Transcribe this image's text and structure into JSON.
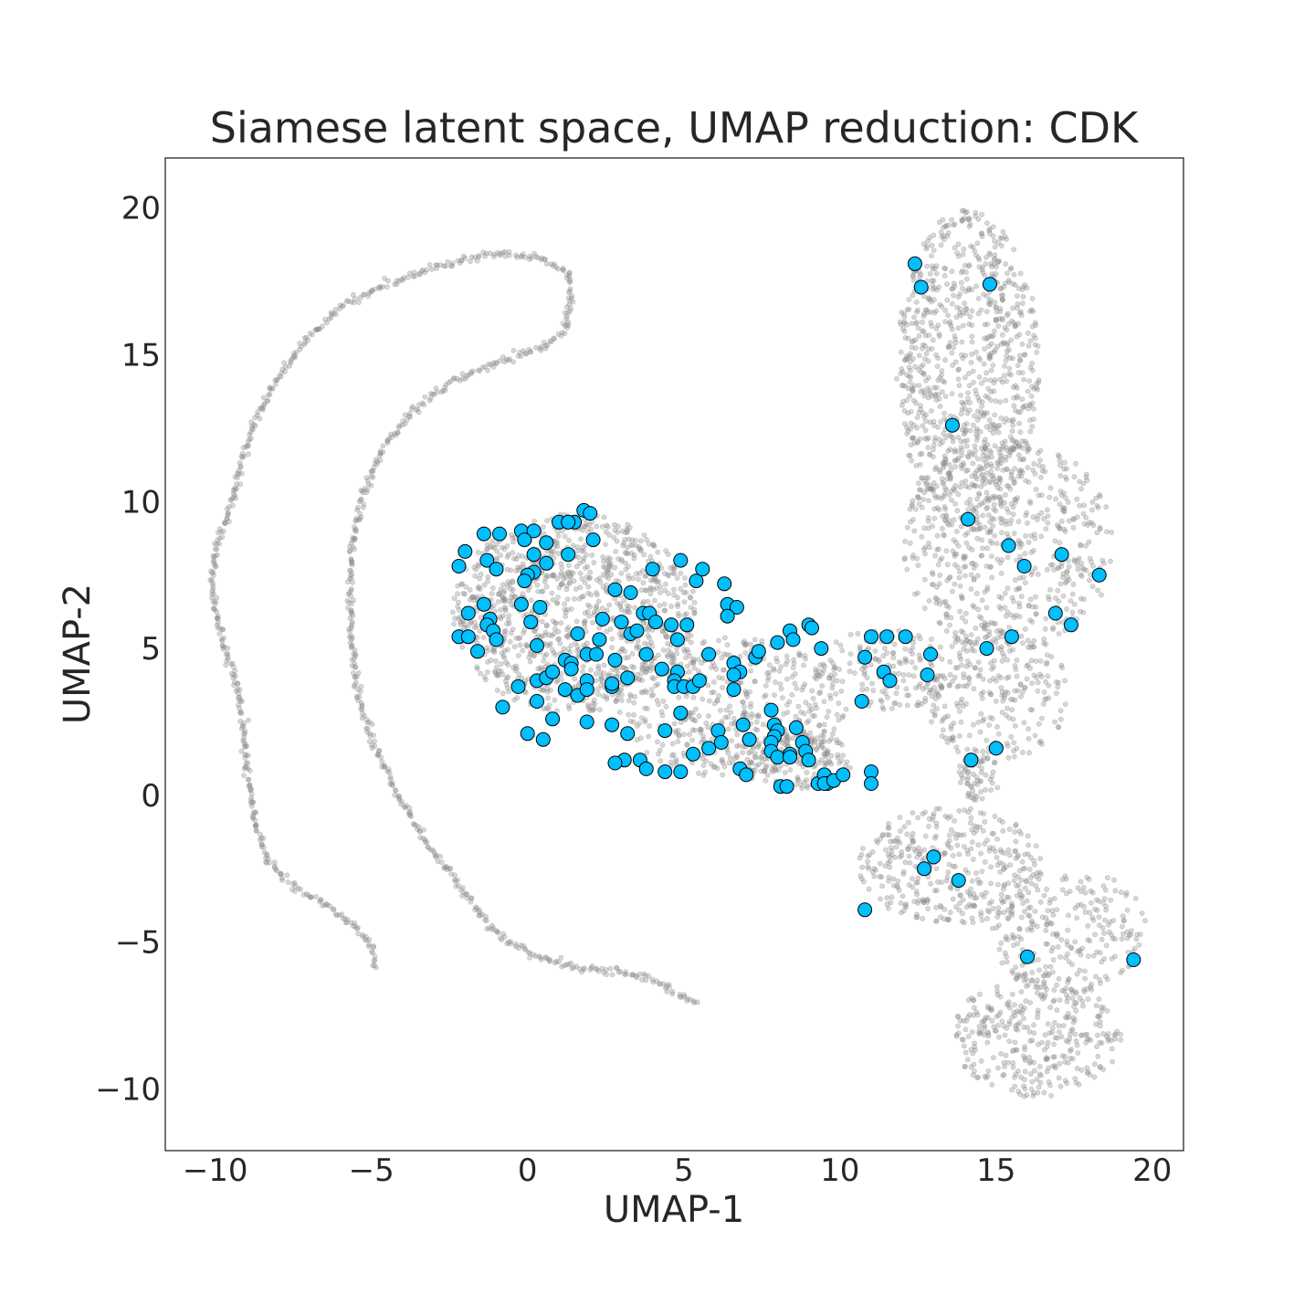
{
  "chart_data": {
    "type": "scatter",
    "title": "Siamese latent space, UMAP reduction: CDK",
    "xlabel": "UMAP-1",
    "ylabel": "UMAP-2",
    "xlim": [
      -11.6,
      21.0
    ],
    "ylim": [
      -12.1,
      21.7
    ],
    "xticks": [
      -10,
      -5,
      0,
      5,
      10,
      15,
      20
    ],
    "yticks": [
      -10,
      -5,
      0,
      5,
      10,
      15,
      20
    ],
    "grid": false,
    "legend": "none",
    "background_color": "#8c8c8c",
    "highlight_color": "#00bfff",
    "highlight_edge_color": "#000000",
    "series": [
      {
        "role": "background",
        "style": "small translucent grey points",
        "curves": [
          [
            [
              -4.9,
              -5.8
            ],
            [
              -5.0,
              -5.1
            ],
            [
              -5.6,
              -4.4
            ],
            [
              -6.5,
              -3.7
            ],
            [
              -7.5,
              -3.1
            ],
            [
              -8.3,
              -2.3
            ],
            [
              -8.7,
              -1.0
            ],
            [
              -9.0,
              0.8
            ],
            [
              -9.1,
              2.5
            ],
            [
              -9.3,
              3.8
            ],
            [
              -9.7,
              5.0
            ],
            [
              -10.0,
              6.3
            ],
            [
              -10.1,
              7.5
            ],
            [
              -9.9,
              8.6
            ],
            [
              -9.5,
              9.8
            ],
            [
              -9.2,
              11.2
            ],
            [
              -8.7,
              12.8
            ],
            [
              -8.0,
              14.2
            ],
            [
              -7.1,
              15.5
            ],
            [
              -6.0,
              16.6
            ],
            [
              -4.8,
              17.3
            ],
            [
              -3.5,
              17.8
            ],
            [
              -2.2,
              18.2
            ],
            [
              -1.0,
              18.4
            ],
            [
              0.5,
              18.3
            ],
            [
              1.3,
              17.8
            ],
            [
              1.4,
              16.8
            ],
            [
              1.2,
              15.8
            ],
            [
              0.5,
              15.3
            ],
            [
              -1.0,
              14.7
            ],
            [
              -2.4,
              14.1
            ],
            [
              -3.7,
              13.1
            ],
            [
              -4.7,
              11.7
            ],
            [
              -5.3,
              10.2
            ],
            [
              -5.6,
              8.6
            ],
            [
              -5.7,
              6.8
            ],
            [
              -5.6,
              5.0
            ],
            [
              -5.4,
              3.3
            ],
            [
              -4.9,
              1.7
            ],
            [
              -4.2,
              0.1
            ],
            [
              -3.3,
              -1.5
            ],
            [
              -2.3,
              -2.9
            ],
            [
              -1.5,
              -4.1
            ],
            [
              -0.6,
              -5.0
            ],
            [
              0.5,
              -5.6
            ],
            [
              1.8,
              -5.9
            ],
            [
              3.0,
              -6.0
            ],
            [
              3.9,
              -6.2
            ],
            [
              4.6,
              -6.7
            ],
            [
              5.3,
              -7.0
            ],
            [
              5.5,
              -7.1
            ]
          ]
        ],
        "clouds": [
          {
            "center": [
              1.5,
              6.2
            ],
            "extent": [
              3.9,
              3.4
            ],
            "count": 1050
          },
          {
            "center": [
              6.5,
              3.0
            ],
            "extent": [
              3.7,
              2.4
            ],
            "count": 500
          },
          {
            "center": [
              8.6,
              1.2
            ],
            "extent": [
              1.8,
              1.0
            ],
            "count": 170
          },
          {
            "center": [
              11.5,
              4.3
            ],
            "extent": [
              2.3,
              1.4
            ],
            "count": 160
          },
          {
            "center": [
              14.1,
              14.5
            ],
            "extent": [
              2.3,
              5.5
            ],
            "count": 850
          },
          {
            "center": [
              15.4,
              8.5
            ],
            "extent": [
              3.4,
              3.6
            ],
            "count": 600
          },
          {
            "center": [
              15.0,
              3.5
            ],
            "extent": [
              2.3,
              2.4
            ],
            "count": 260
          },
          {
            "center": [
              13.6,
              -2.4
            ],
            "extent": [
              3.0,
              2.0
            ],
            "count": 360
          },
          {
            "center": [
              17.3,
              -4.6
            ],
            "extent": [
              2.5,
              2.2
            ],
            "count": 260
          },
          {
            "center": [
              16.3,
              -8.2
            ],
            "extent": [
              2.7,
              2.1
            ],
            "count": 330
          },
          {
            "center": [
              14.5,
              0.7
            ],
            "extent": [
              0.7,
              0.9
            ],
            "count": 60
          }
        ]
      },
      {
        "role": "highlight",
        "style": "large blue circles with black edge",
        "points": [
          [
            12.4,
            18.1
          ],
          [
            12.6,
            17.3
          ],
          [
            14.8,
            17.4
          ],
          [
            13.6,
            12.6
          ],
          [
            14.1,
            9.4
          ],
          [
            15.4,
            8.5
          ],
          [
            15.9,
            7.8
          ],
          [
            17.1,
            8.2
          ],
          [
            18.3,
            7.5
          ],
          [
            16.9,
            6.2
          ],
          [
            17.4,
            5.8
          ],
          [
            15.5,
            5.4
          ],
          [
            14.7,
            5.0
          ],
          [
            15.0,
            1.6
          ],
          [
            14.2,
            1.2
          ],
          [
            13.0,
            -2.1
          ],
          [
            12.7,
            -2.5
          ],
          [
            13.8,
            -2.9
          ],
          [
            10.8,
            -3.9
          ],
          [
            16.0,
            -5.5
          ],
          [
            19.4,
            -5.6
          ],
          [
            -2.2,
            7.8
          ],
          [
            -2.0,
            8.3
          ],
          [
            -1.4,
            8.9
          ],
          [
            -0.9,
            8.9
          ],
          [
            -1.3,
            8.0
          ],
          [
            -1.0,
            7.7
          ],
          [
            -0.2,
            9.0
          ],
          [
            0.2,
            9.0
          ],
          [
            -0.1,
            8.7
          ],
          [
            0.6,
            8.6
          ],
          [
            0.2,
            8.2
          ],
          [
            0.6,
            7.9
          ],
          [
            1.0,
            9.3
          ],
          [
            1.5,
            9.3
          ],
          [
            1.3,
            9.3
          ],
          [
            1.8,
            9.7
          ],
          [
            2.0,
            9.6
          ],
          [
            2.1,
            8.7
          ],
          [
            1.3,
            8.2
          ],
          [
            0.2,
            7.6
          ],
          [
            0.0,
            7.5
          ],
          [
            -0.1,
            7.3
          ],
          [
            -1.9,
            6.2
          ],
          [
            -1.4,
            6.5
          ],
          [
            -1.2,
            6.0
          ],
          [
            -1.3,
            5.8
          ],
          [
            -1.1,
            5.6
          ],
          [
            -1.0,
            5.3
          ],
          [
            -2.2,
            5.4
          ],
          [
            -1.9,
            5.4
          ],
          [
            -1.6,
            4.9
          ],
          [
            -0.2,
            6.5
          ],
          [
            0.4,
            6.4
          ],
          [
            0.1,
            5.9
          ],
          [
            0.3,
            5.1
          ],
          [
            -0.3,
            3.7
          ],
          [
            0.3,
            3.9
          ],
          [
            0.6,
            4.0
          ],
          [
            0.8,
            4.2
          ],
          [
            0.3,
            3.2
          ],
          [
            -0.8,
            3.0
          ],
          [
            0.8,
            2.6
          ],
          [
            0.0,
            2.1
          ],
          [
            0.5,
            1.9
          ],
          [
            1.2,
            4.6
          ],
          [
            1.4,
            4.5
          ],
          [
            1.4,
            4.3
          ],
          [
            1.6,
            5.5
          ],
          [
            1.9,
            4.8
          ],
          [
            2.2,
            4.8
          ],
          [
            2.3,
            5.3
          ],
          [
            2.4,
            6.0
          ],
          [
            2.8,
            7.0
          ],
          [
            3.3,
            6.9
          ],
          [
            3.7,
            6.2
          ],
          [
            3.9,
            6.2
          ],
          [
            3.0,
            5.9
          ],
          [
            3.3,
            5.5
          ],
          [
            3.5,
            5.6
          ],
          [
            4.1,
            5.9
          ],
          [
            4.6,
            5.8
          ],
          [
            5.1,
            5.8
          ],
          [
            4.8,
            5.3
          ],
          [
            4.0,
            7.7
          ],
          [
            4.9,
            8.0
          ],
          [
            5.4,
            7.3
          ],
          [
            5.6,
            7.7
          ],
          [
            6.3,
            7.2
          ],
          [
            6.4,
            6.5
          ],
          [
            6.7,
            6.4
          ],
          [
            6.4,
            6.1
          ],
          [
            2.8,
            4.6
          ],
          [
            3.2,
            4.0
          ],
          [
            3.8,
            4.8
          ],
          [
            4.3,
            4.3
          ],
          [
            4.8,
            4.2
          ],
          [
            4.7,
            3.9
          ],
          [
            4.7,
            3.7
          ],
          [
            5.0,
            3.7
          ],
          [
            5.3,
            3.7
          ],
          [
            5.5,
            3.9
          ],
          [
            5.8,
            4.8
          ],
          [
            6.6,
            4.5
          ],
          [
            6.8,
            4.2
          ],
          [
            6.6,
            4.1
          ],
          [
            6.6,
            3.6
          ],
          [
            1.2,
            3.6
          ],
          [
            1.6,
            3.4
          ],
          [
            1.9,
            3.9
          ],
          [
            1.9,
            3.6
          ],
          [
            2.7,
            3.7
          ],
          [
            2.7,
            3.8
          ],
          [
            1.9,
            2.5
          ],
          [
            2.7,
            2.4
          ],
          [
            3.2,
            2.1
          ],
          [
            4.4,
            2.2
          ],
          [
            4.9,
            2.8
          ],
          [
            6.1,
            2.2
          ],
          [
            6.2,
            1.8
          ],
          [
            6.9,
            2.4
          ],
          [
            7.1,
            1.9
          ],
          [
            5.8,
            1.6
          ],
          [
            5.3,
            1.4
          ],
          [
            3.6,
            1.2
          ],
          [
            3.1,
            1.2
          ],
          [
            2.8,
            1.1
          ],
          [
            3.8,
            0.9
          ],
          [
            4.4,
            0.8
          ],
          [
            4.9,
            0.8
          ],
          [
            6.8,
            0.9
          ],
          [
            7.0,
            0.7
          ],
          [
            7.3,
            4.7
          ],
          [
            7.4,
            4.9
          ],
          [
            8.0,
            5.2
          ],
          [
            8.4,
            5.6
          ],
          [
            8.5,
            5.3
          ],
          [
            9.0,
            5.8
          ],
          [
            9.1,
            5.7
          ],
          [
            9.4,
            5.0
          ],
          [
            7.8,
            2.9
          ],
          [
            7.9,
            2.4
          ],
          [
            8.0,
            2.2
          ],
          [
            7.9,
            2.0
          ],
          [
            7.8,
            1.8
          ],
          [
            7.8,
            1.5
          ],
          [
            8.0,
            1.3
          ],
          [
            8.4,
            1.4
          ],
          [
            8.6,
            2.3
          ],
          [
            8.8,
            1.8
          ],
          [
            8.9,
            1.5
          ],
          [
            9.0,
            1.2
          ],
          [
            8.4,
            1.3
          ],
          [
            8.1,
            0.3
          ],
          [
            8.3,
            0.3
          ],
          [
            9.3,
            0.4
          ],
          [
            9.5,
            0.7
          ],
          [
            9.6,
            0.4
          ],
          [
            9.5,
            0.4
          ],
          [
            9.8,
            0.5
          ],
          [
            10.1,
            0.7
          ],
          [
            10.7,
            3.2
          ],
          [
            10.8,
            4.7
          ],
          [
            11.0,
            5.4
          ],
          [
            11.5,
            5.4
          ],
          [
            12.1,
            5.4
          ],
          [
            11.4,
            4.2
          ],
          [
            11.6,
            3.9
          ],
          [
            12.8,
            4.1
          ],
          [
            12.9,
            4.8
          ],
          [
            11.0,
            0.8
          ],
          [
            11.0,
            0.4
          ]
        ]
      }
    ]
  }
}
